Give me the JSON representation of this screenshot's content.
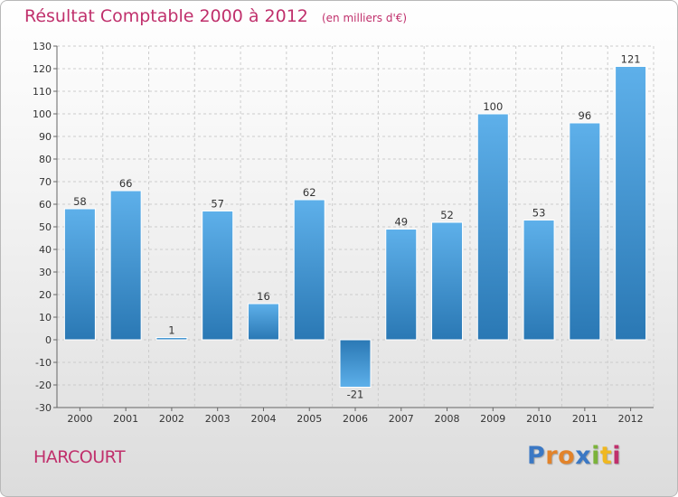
{
  "title": "Résultat Comptable 2000 à 2012",
  "unit_note": "(en milliers d'€)",
  "town": "HARCOURT",
  "brand": {
    "letters": [
      "P",
      "r",
      "o",
      "x",
      "i",
      "t",
      "i"
    ],
    "colors": [
      "#3b78c4",
      "#e2832a",
      "#e2832a",
      "#3b78c4",
      "#7bb33a",
      "#f0b820",
      "#c0306c"
    ]
  },
  "colors": {
    "title": "#c0306c",
    "bar_light": "#5eb0ea",
    "bar_dark": "#2a78b4",
    "grid": "#cccccc"
  },
  "chart_data": {
    "type": "bar",
    "title": "Résultat Comptable 2000 à 2012",
    "xlabel": "",
    "ylabel": "",
    "categories": [
      "2000",
      "2001",
      "2002",
      "2003",
      "2004",
      "2005",
      "2006",
      "2007",
      "2008",
      "2009",
      "2010",
      "2011",
      "2012"
    ],
    "values": [
      58,
      66,
      1,
      57,
      16,
      62,
      -21,
      49,
      52,
      100,
      53,
      96,
      121
    ],
    "ylim": [
      -30,
      130
    ],
    "yticks": [
      -30,
      -20,
      -10,
      0,
      10,
      20,
      30,
      40,
      50,
      60,
      70,
      80,
      90,
      100,
      110,
      120,
      130
    ],
    "grid": true
  }
}
